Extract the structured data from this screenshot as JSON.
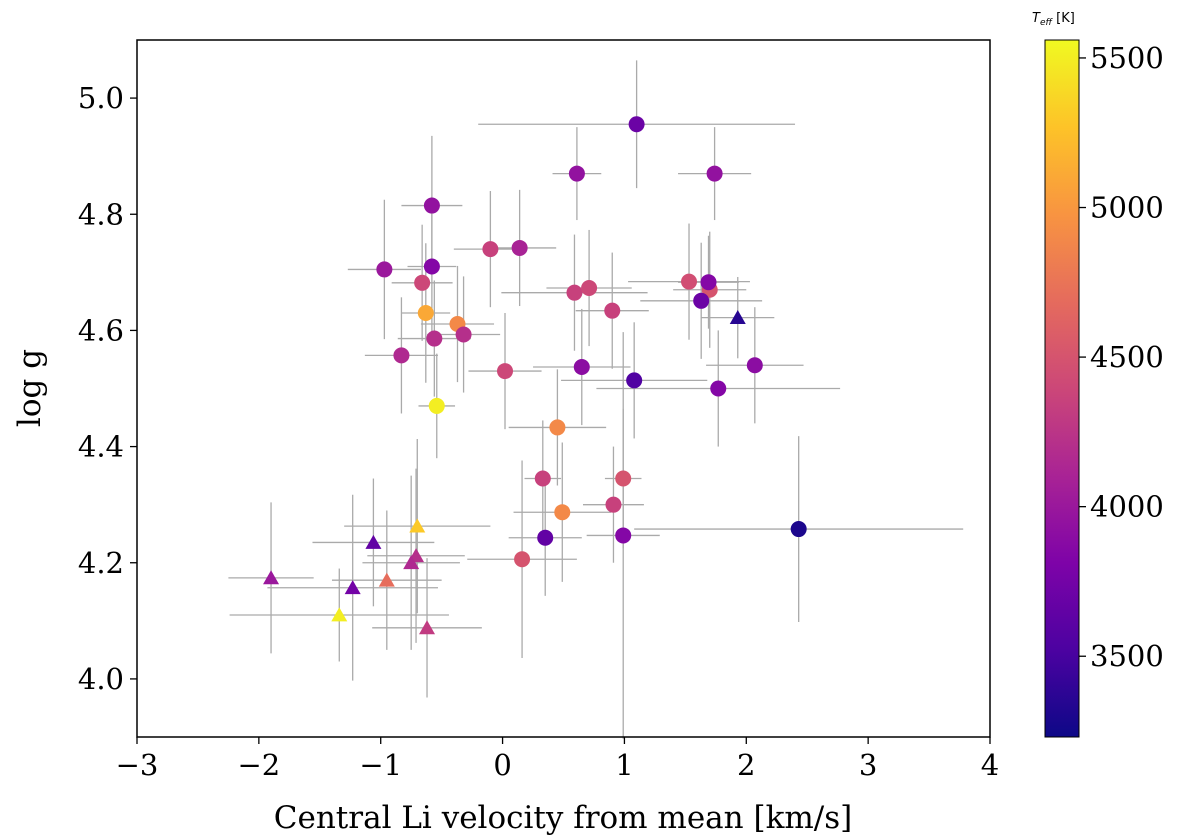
{
  "chart_data": {
    "type": "scatter",
    "title": "",
    "xlabel": "Central Li velocity from mean [km/s]",
    "ylabel": "log g",
    "xlim": [
      -3,
      4
    ],
    "ylim": [
      3.9,
      5.1
    ],
    "xticks": [
      -3,
      -2,
      -1,
      0,
      1,
      2,
      3,
      4
    ],
    "xtick_labels": [
      "−3",
      "−2",
      "−1",
      "0",
      "1",
      "2",
      "3",
      "4"
    ],
    "yticks": [
      4.0,
      4.2,
      4.4,
      4.6,
      4.8,
      5.0
    ],
    "ytick_labels": [
      "4.0",
      "4.2",
      "4.4",
      "4.6",
      "4.8",
      "5.0"
    ],
    "grid": false,
    "colorbar": {
      "label": "T",
      "label_sub": "eff",
      "label_unit": " [K]",
      "colormap": "plasma",
      "range": [
        3230,
        5560
      ],
      "ticks": [
        3500,
        4000,
        4500,
        5000,
        5500
      ],
      "tick_labels": [
        "3500",
        "4000",
        "4500",
        "5000",
        "5500"
      ]
    },
    "error_bar_color": "#aaaaaa",
    "series": [
      {
        "name": "circles",
        "marker": "circle",
        "points": [
          {
            "x": 1.1,
            "y": 4.955,
            "xerr": 1.3,
            "yerr": 0.11,
            "teff": 3700
          },
          {
            "x": 0.61,
            "y": 4.87,
            "xerr": 0.2,
            "yerr": 0.08,
            "teff": 3950
          },
          {
            "x": 1.74,
            "y": 4.87,
            "xerr": 0.3,
            "yerr": 0.08,
            "teff": 3950
          },
          {
            "x": -0.58,
            "y": 4.815,
            "xerr": 0.25,
            "yerr": 0.12,
            "teff": 3950
          },
          {
            "x": -0.1,
            "y": 4.74,
            "xerr": 0.3,
            "yerr": 0.1,
            "teff": 4350
          },
          {
            "x": 0.14,
            "y": 4.742,
            "xerr": 0.3,
            "yerr": 0.1,
            "teff": 4100
          },
          {
            "x": -0.97,
            "y": 4.705,
            "xerr": 0.3,
            "yerr": 0.12,
            "teff": 4000
          },
          {
            "x": -0.58,
            "y": 4.71,
            "xerr": 0.2,
            "yerr": 0.12,
            "teff": 3850
          },
          {
            "x": -0.66,
            "y": 4.682,
            "xerr": 0.25,
            "yerr": 0.1,
            "teff": 4400
          },
          {
            "x": 0.59,
            "y": 4.665,
            "xerr": 0.6,
            "yerr": 0.1,
            "teff": 4350
          },
          {
            "x": 0.71,
            "y": 4.673,
            "xerr": 0.35,
            "yerr": 0.1,
            "teff": 4400
          },
          {
            "x": 1.53,
            "y": 4.684,
            "xerr": 0.5,
            "yerr": 0.1,
            "teff": 4450
          },
          {
            "x": 1.7,
            "y": 4.67,
            "xerr": 0.3,
            "yerr": 0.1,
            "teff": 4500
          },
          {
            "x": 1.69,
            "y": 4.683,
            "xerr": 0.25,
            "yerr": 0.08,
            "teff": 3850
          },
          {
            "x": 1.63,
            "y": 4.651,
            "xerr": 0.5,
            "yerr": 0.1,
            "teff": 3700
          },
          {
            "x": -0.63,
            "y": 4.63,
            "xerr": 0.2,
            "yerr": 0.12,
            "teff": 5100
          },
          {
            "x": -0.37,
            "y": 4.611,
            "xerr": 0.3,
            "yerr": 0.1,
            "teff": 4900
          },
          {
            "x": 0.9,
            "y": 4.634,
            "xerr": 0.3,
            "yerr": 0.1,
            "teff": 4350
          },
          {
            "x": -0.32,
            "y": 4.593,
            "xerr": 0.3,
            "yerr": 0.1,
            "teff": 4200
          },
          {
            "x": -0.56,
            "y": 4.586,
            "xerr": 0.3,
            "yerr": 0.1,
            "teff": 4200
          },
          {
            "x": -0.83,
            "y": 4.557,
            "xerr": 0.3,
            "yerr": 0.1,
            "teff": 4150
          },
          {
            "x": 0.02,
            "y": 4.53,
            "xerr": 0.3,
            "yerr": 0.1,
            "teff": 4400
          },
          {
            "x": 0.65,
            "y": 4.537,
            "xerr": 0.4,
            "yerr": 0.1,
            "teff": 3900
          },
          {
            "x": 2.07,
            "y": 4.54,
            "xerr": 0.4,
            "yerr": 0.1,
            "teff": 3900
          },
          {
            "x": 1.08,
            "y": 4.514,
            "xerr": 0.6,
            "yerr": 0.1,
            "teff": 3550
          },
          {
            "x": 1.77,
            "y": 4.5,
            "xerr": 1.0,
            "yerr": 0.1,
            "teff": 3850
          },
          {
            "x": -0.54,
            "y": 4.47,
            "xerr": 0.15,
            "yerr": 0.09,
            "teff": 5500
          },
          {
            "x": 0.45,
            "y": 4.433,
            "xerr": 0.4,
            "yerr": 0.1,
            "teff": 4900
          },
          {
            "x": 0.33,
            "y": 4.345,
            "xerr": 0.15,
            "yerr": 0.1,
            "teff": 4350
          },
          {
            "x": 0.99,
            "y": 4.345,
            "xerr": 0.15,
            "yerr": 0.12,
            "teff": 4500
          },
          {
            "x": 0.91,
            "y": 4.3,
            "xerr": 0.25,
            "yerr": 0.1,
            "teff": 4350
          },
          {
            "x": 0.49,
            "y": 4.287,
            "xerr": 0.4,
            "yerr": 0.12,
            "teff": 4900
          },
          {
            "x": 0.35,
            "y": 4.243,
            "xerr": 0.3,
            "yerr": 0.1,
            "teff": 3650
          },
          {
            "x": 0.99,
            "y": 4.247,
            "xerr": 0.3,
            "yerr": 0.35,
            "teff": 3850
          },
          {
            "x": 2.43,
            "y": 4.258,
            "xerr": 1.35,
            "yerr": 0.16,
            "teff": 3300
          },
          {
            "x": 0.16,
            "y": 4.206,
            "xerr": 0.45,
            "yerr": 0.17,
            "teff": 4500
          }
        ]
      },
      {
        "name": "triangles",
        "marker": "triangle",
        "points": [
          {
            "x": 1.93,
            "y": 4.622,
            "xerr": 0.3,
            "yerr": 0.07,
            "teff": 3350
          },
          {
            "x": -0.7,
            "y": 4.263,
            "xerr": 0.6,
            "yerr": 0.15,
            "teff": 5300
          },
          {
            "x": -1.06,
            "y": 4.235,
            "xerr": 0.5,
            "yerr": 0.11,
            "teff": 3650
          },
          {
            "x": -0.71,
            "y": 4.212,
            "xerr": 0.4,
            "yerr": 0.15,
            "teff": 4200
          },
          {
            "x": -0.75,
            "y": 4.2,
            "xerr": 0.4,
            "yerr": 0.15,
            "teff": 4150
          },
          {
            "x": -1.9,
            "y": 4.174,
            "xerr": 0.35,
            "yerr": 0.13,
            "teff": 4000
          },
          {
            "x": -0.95,
            "y": 4.17,
            "xerr": 0.45,
            "yerr": 0.12,
            "teff": 4700
          },
          {
            "x": -1.23,
            "y": 4.157,
            "xerr": 0.7,
            "yerr": 0.16,
            "teff": 3750
          },
          {
            "x": -1.34,
            "y": 4.11,
            "xerr": 0.9,
            "yerr": 0.08,
            "teff": 5500
          },
          {
            "x": -0.62,
            "y": 4.088,
            "xerr": 0.45,
            "yerr": 0.12,
            "teff": 4300
          }
        ]
      }
    ]
  }
}
